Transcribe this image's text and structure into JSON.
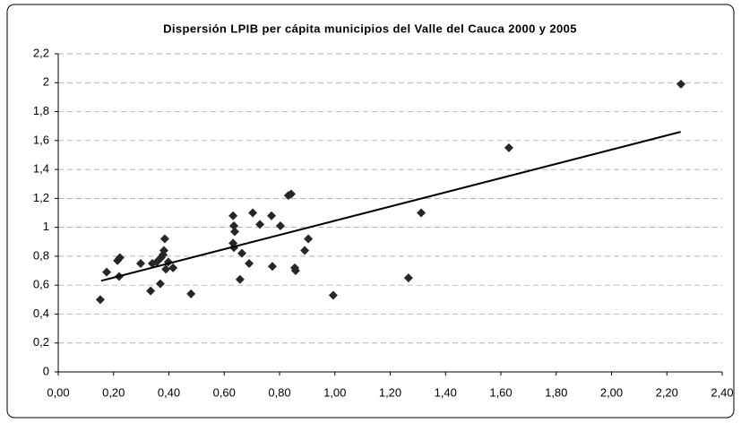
{
  "chart_data": {
    "type": "scatter",
    "title": "Dispersión LPIB per cápita municipios del Valle del Cauca 2000 y 2005",
    "color": "#262626",
    "x": [
      0.152,
      0.175,
      0.214,
      0.223,
      0.22,
      0.298,
      0.334,
      0.34,
      0.356,
      0.369,
      0.372,
      0.382,
      0.379,
      0.385,
      0.389,
      0.398,
      0.415,
      0.48,
      0.632,
      0.635,
      0.632,
      0.638,
      0.635,
      0.664,
      0.657,
      0.69,
      0.703,
      0.729,
      0.771,
      0.774,
      0.803,
      0.855,
      0.891,
      0.832,
      0.842,
      0.858,
      0.904,
      0.994,
      1.266,
      1.312,
      1.629,
      2.251
    ],
    "values": [
      0.5,
      0.69,
      0.77,
      0.79,
      0.66,
      0.75,
      0.56,
      0.75,
      0.76,
      0.61,
      0.79,
      0.84,
      0.81,
      0.92,
      0.71,
      0.76,
      0.72,
      0.54,
      1.08,
      1.01,
      0.89,
      0.97,
      0.86,
      0.82,
      0.64,
      0.75,
      1.1,
      1.02,
      1.08,
      0.73,
      1.01,
      0.72,
      0.84,
      1.22,
      1.23,
      0.7,
      0.92,
      0.53,
      0.65,
      1.1,
      1.55,
      1.99
    ],
    "trendline": {
      "x": [
        0.155,
        2.25
      ],
      "values": [
        0.63,
        1.66
      ],
      "color": "#000000"
    },
    "xlim": [
      0,
      2.4
    ],
    "xticks": [
      {
        "value": 0,
        "label": "0,00"
      },
      {
        "value": 0.2,
        "label": "0,20"
      },
      {
        "value": 0.4,
        "label": "0,40"
      },
      {
        "value": 0.6,
        "label": "0,60"
      },
      {
        "value": 0.8,
        "label": "0,80"
      },
      {
        "value": 1,
        "label": "1,00"
      },
      {
        "value": 1.2,
        "label": "1,20"
      },
      {
        "value": 1.4,
        "label": "1,40"
      },
      {
        "value": 1.6,
        "label": "1,60"
      },
      {
        "value": 1.8,
        "label": "1,80"
      },
      {
        "value": 2,
        "label": "2,00"
      },
      {
        "value": 2.2,
        "label": "2,20"
      },
      {
        "value": 2.4,
        "label": "2,40"
      }
    ],
    "ylim": [
      0,
      2.2
    ],
    "yticks": [
      0,
      {
        "value": 0.2,
        "label": "0,2"
      },
      {
        "value": 0.4,
        "label": "0,4"
      },
      {
        "value": 0.6,
        "label": "0,6"
      },
      {
        "value": 0.8,
        "label": "0,8"
      },
      1,
      {
        "value": 1.2,
        "label": "1,2"
      },
      {
        "value": 1.4,
        "label": "1,4"
      },
      {
        "value": 1.6,
        "label": "1,6"
      },
      {
        "value": 1.8,
        "label": "1,8"
      },
      2,
      {
        "value": 2.2,
        "label": "2,2"
      }
    ],
    "grid": true
  }
}
